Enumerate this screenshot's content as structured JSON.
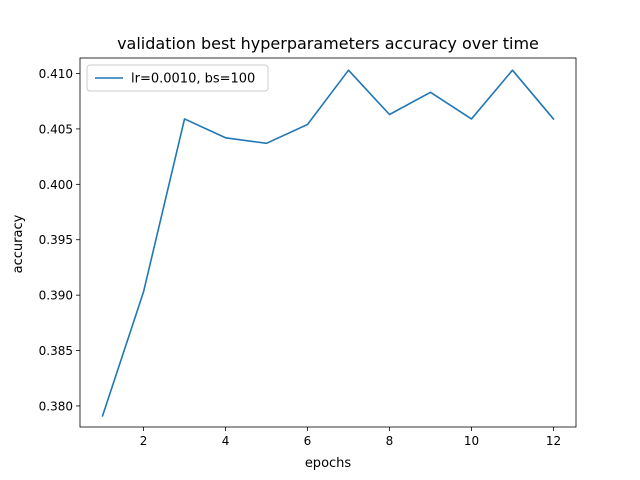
{
  "chart_data": {
    "type": "line",
    "title": "validation best hyperparameters accuracy over time",
    "xlabel": "epochs",
    "ylabel": "accuracy",
    "xlim": [
      0.45,
      12.55
    ],
    "ylim": [
      0.3781,
      0.4114
    ],
    "xticks": [
      2,
      4,
      6,
      8,
      10,
      12
    ],
    "yticks": [
      0.38,
      0.385,
      0.39,
      0.395,
      0.4,
      0.405,
      0.41
    ],
    "xtick_labels": [
      "2",
      "4",
      "6",
      "8",
      "10",
      "12"
    ],
    "ytick_labels": [
      "0.380",
      "0.385",
      "0.390",
      "0.395",
      "0.400",
      "0.405",
      "0.410"
    ],
    "grid": false,
    "legend_position": "top-left",
    "series": [
      {
        "name": "lr=0.0010, bs=100",
        "color": "#1f77b4",
        "x": [
          1,
          2,
          3,
          4,
          5,
          6,
          7,
          8,
          9,
          10,
          11,
          12
        ],
        "y": [
          0.3791,
          0.3903,
          0.4059,
          0.4042,
          0.4037,
          0.4054,
          0.4103,
          0.4063,
          0.4083,
          0.4059,
          0.4103,
          0.4059
        ]
      }
    ]
  }
}
